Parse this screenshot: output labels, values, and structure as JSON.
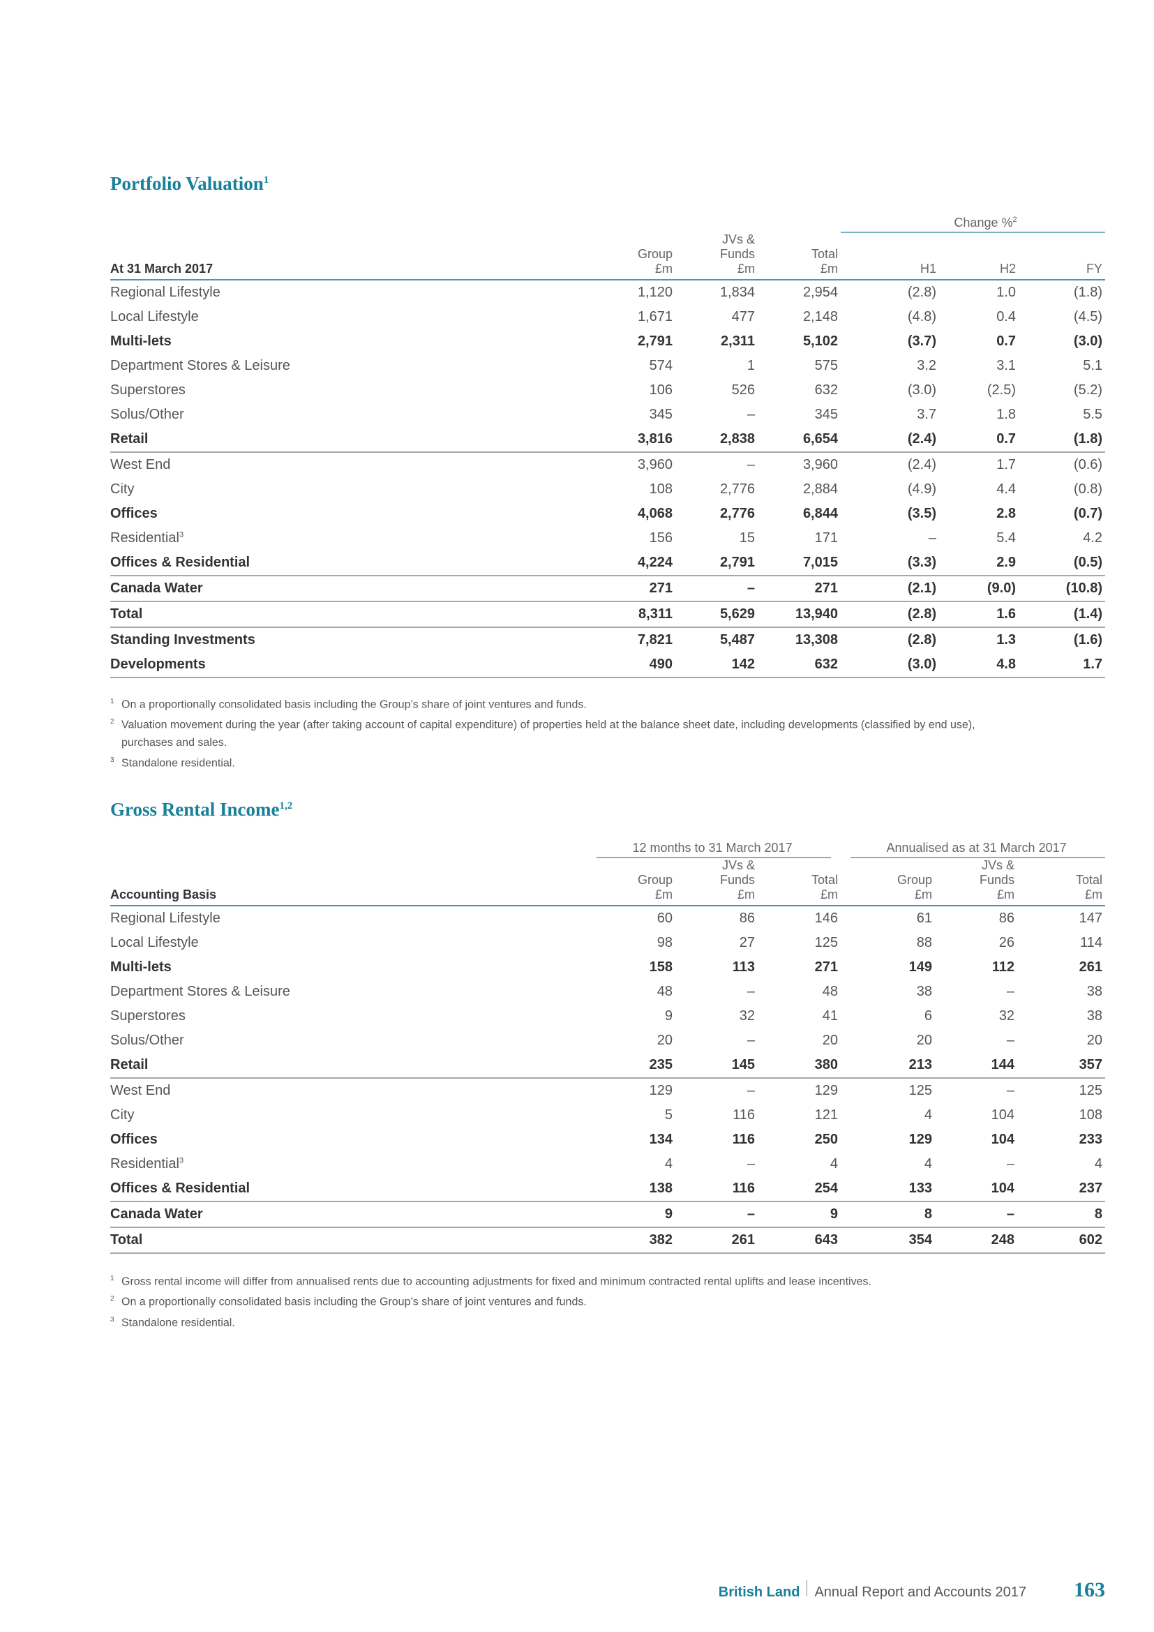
{
  "valuation": {
    "title": "Portfolio Valuation",
    "title_sup": "1",
    "change_header": "Change %",
    "change_sup": "2",
    "columns": [
      "At 31 March 2017",
      "Group\n£m",
      "JVs &\nFunds\n£m",
      "Total\n£m",
      "H1",
      "H2",
      "FY"
    ],
    "rows": [
      {
        "label": "Regional Lifestyle",
        "values": [
          "1,120",
          "1,834",
          "2,954",
          "(2.8)",
          "1.0",
          "(1.8)"
        ],
        "bold": false,
        "line": false
      },
      {
        "label": "Local Lifestyle",
        "values": [
          "1,671",
          "477",
          "2,148",
          "(4.8)",
          "0.4",
          "(4.5)"
        ],
        "bold": false,
        "line": false
      },
      {
        "label": "Multi-lets",
        "values": [
          "2,791",
          "2,311",
          "5,102",
          "(3.7)",
          "0.7",
          "(3.0)"
        ],
        "bold": true,
        "line": false
      },
      {
        "label": "Department Stores & Leisure",
        "values": [
          "574",
          "1",
          "575",
          "3.2",
          "3.1",
          "5.1"
        ],
        "bold": false,
        "line": false
      },
      {
        "label": "Superstores",
        "values": [
          "106",
          "526",
          "632",
          "(3.0)",
          "(2.5)",
          "(5.2)"
        ],
        "bold": false,
        "line": false
      },
      {
        "label": "Solus/Other",
        "values": [
          "345",
          "–",
          "345",
          "3.7",
          "1.8",
          "5.5"
        ],
        "bold": false,
        "line": false
      },
      {
        "label": "Retail",
        "values": [
          "3,816",
          "2,838",
          "6,654",
          "(2.4)",
          "0.7",
          "(1.8)"
        ],
        "bold": true,
        "line": true
      },
      {
        "label": "West End",
        "values": [
          "3,960",
          "–",
          "3,960",
          "(2.4)",
          "1.7",
          "(0.6)"
        ],
        "bold": false,
        "line": false
      },
      {
        "label": "City",
        "values": [
          "108",
          "2,776",
          "2,884",
          "(4.9)",
          "4.4",
          "(0.8)"
        ],
        "bold": false,
        "line": false
      },
      {
        "label": "Offices",
        "values": [
          "4,068",
          "2,776",
          "6,844",
          "(3.5)",
          "2.8",
          "(0.7)"
        ],
        "bold": true,
        "line": false
      },
      {
        "label": "Residential",
        "sup": "3",
        "values": [
          "156",
          "15",
          "171",
          "–",
          "5.4",
          "4.2"
        ],
        "bold": false,
        "line": false
      },
      {
        "label": "Offices & Residential",
        "values": [
          "4,224",
          "2,791",
          "7,015",
          "(3.3)",
          "2.9",
          "(0.5)"
        ],
        "bold": true,
        "line": true
      },
      {
        "label": "Canada Water",
        "values": [
          "271",
          "–",
          "271",
          "(2.1)",
          "(9.0)",
          "(10.8)"
        ],
        "bold": true,
        "line": true
      },
      {
        "label": "Total",
        "values": [
          "8,311",
          "5,629",
          "13,940",
          "(2.8)",
          "1.6",
          "(1.4)"
        ],
        "bold": true,
        "line": true
      },
      {
        "label": "Standing Investments",
        "values": [
          "7,821",
          "5,487",
          "13,308",
          "(2.8)",
          "1.3",
          "(1.6)"
        ],
        "bold": true,
        "line": false
      },
      {
        "label": "Developments",
        "values": [
          "490",
          "142",
          "632",
          "(3.0)",
          "4.8",
          "1.7"
        ],
        "bold": true,
        "line": true
      }
    ],
    "notes": [
      {
        "n": "1",
        "text": "On a proportionally consolidated basis including the Group’s share of joint ventures and funds."
      },
      {
        "n": "2",
        "text": "Valuation movement during the year (after taking account of capital expenditure) of properties held at the balance sheet date, including developments (classified by end use), purchases and sales."
      },
      {
        "n": "3",
        "text": "Standalone residential."
      }
    ]
  },
  "rental": {
    "title": "Gross Rental Income",
    "title_sup": "1,2",
    "group_headers": [
      "12 months to 31 March 2017",
      "Annualised as at 31 March 2017"
    ],
    "columns": [
      "Accounting Basis",
      "Group\n£m",
      "JVs &\nFunds\n£m",
      "Total\n£m",
      "Group\n£m",
      "JVs &\nFunds\n£m",
      "Total\n£m"
    ],
    "rows": [
      {
        "label": "Regional Lifestyle",
        "values": [
          "60",
          "86",
          "146",
          "61",
          "86",
          "147"
        ],
        "bold": false,
        "line": false
      },
      {
        "label": "Local Lifestyle",
        "values": [
          "98",
          "27",
          "125",
          "88",
          "26",
          "114"
        ],
        "bold": false,
        "line": false
      },
      {
        "label": "Multi-lets",
        "values": [
          "158",
          "113",
          "271",
          "149",
          "112",
          "261"
        ],
        "bold": true,
        "line": false
      },
      {
        "label": "Department Stores & Leisure",
        "values": [
          "48",
          "–",
          "48",
          "38",
          "–",
          "38"
        ],
        "bold": false,
        "line": false
      },
      {
        "label": "Superstores",
        "values": [
          "9",
          "32",
          "41",
          "6",
          "32",
          "38"
        ],
        "bold": false,
        "line": false
      },
      {
        "label": "Solus/Other",
        "values": [
          "20",
          "–",
          "20",
          "20",
          "–",
          "20"
        ],
        "bold": false,
        "line": false
      },
      {
        "label": "Retail",
        "values": [
          "235",
          "145",
          "380",
          "213",
          "144",
          "357"
        ],
        "bold": true,
        "line": true
      },
      {
        "label": "West End",
        "values": [
          "129",
          "–",
          "129",
          "125",
          "–",
          "125"
        ],
        "bold": false,
        "line": false
      },
      {
        "label": "City",
        "values": [
          "5",
          "116",
          "121",
          "4",
          "104",
          "108"
        ],
        "bold": false,
        "line": false
      },
      {
        "label": "Offices",
        "values": [
          "134",
          "116",
          "250",
          "129",
          "104",
          "233"
        ],
        "bold": true,
        "line": false
      },
      {
        "label": "Residential",
        "sup": "3",
        "values": [
          "4",
          "–",
          "4",
          "4",
          "–",
          "4"
        ],
        "bold": false,
        "line": false
      },
      {
        "label": "Offices & Residential",
        "values": [
          "138",
          "116",
          "254",
          "133",
          "104",
          "237"
        ],
        "bold": true,
        "line": true
      },
      {
        "label": "Canada Water",
        "values": [
          "9",
          "–",
          "9",
          "8",
          "–",
          "8"
        ],
        "bold": true,
        "line": true
      },
      {
        "label": "Total",
        "values": [
          "382",
          "261",
          "643",
          "354",
          "248",
          "602"
        ],
        "bold": true,
        "line": true
      }
    ],
    "notes": [
      {
        "n": "1",
        "text": "Gross rental income will differ from annualised rents due to accounting adjustments for fixed and minimum contracted rental uplifts and lease incentives."
      },
      {
        "n": "2",
        "text": "On a proportionally consolidated basis including the Group’s share of joint ventures and funds."
      },
      {
        "n": "3",
        "text": "Standalone residential."
      }
    ]
  },
  "footer": {
    "brand": "British Land",
    "doc": "Annual Report and Accounts 2017",
    "page": "163"
  }
}
